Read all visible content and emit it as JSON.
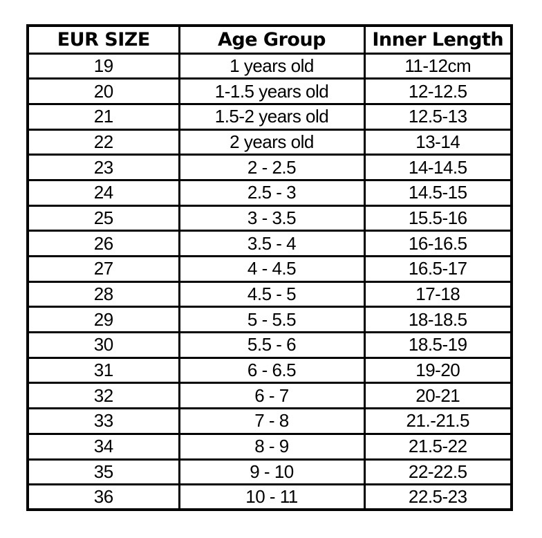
{
  "chart_data": {
    "type": "table",
    "columns": [
      "EUR SIZE",
      "Age Group",
      "Inner Length"
    ],
    "rows": [
      [
        "19",
        "1 years old",
        "11-12cm"
      ],
      [
        "20",
        "1-1.5 years old",
        "12-12.5"
      ],
      [
        "21",
        "1.5-2 years old",
        "12.5-13"
      ],
      [
        "22",
        "2 years old",
        "13-14"
      ],
      [
        "23",
        "2 - 2.5",
        "14-14.5"
      ],
      [
        "24",
        "2.5 - 3",
        "14.5-15"
      ],
      [
        "25",
        "3 - 3.5",
        "15.5-16"
      ],
      [
        "26",
        "3.5 - 4",
        "16-16.5"
      ],
      [
        "27",
        "4 - 4.5",
        "16.5-17"
      ],
      [
        "28",
        "4.5 - 5",
        "17-18"
      ],
      [
        "29",
        "5 - 5.5",
        "18-18.5"
      ],
      [
        "30",
        "5.5 - 6",
        "18.5-19"
      ],
      [
        "31",
        "6 - 6.5",
        "19-20"
      ],
      [
        "32",
        "6 - 7",
        "20-21"
      ],
      [
        "33",
        "7 - 8",
        "21.-21.5"
      ],
      [
        "34",
        "8 - 9",
        "21.5-22"
      ],
      [
        "35",
        "9 - 10",
        "22-22.5"
      ],
      [
        "36",
        "10 - 11",
        "22.5-23"
      ]
    ]
  },
  "colors": {
    "border": "#000000",
    "text": "#000000",
    "background": "#ffffff"
  }
}
